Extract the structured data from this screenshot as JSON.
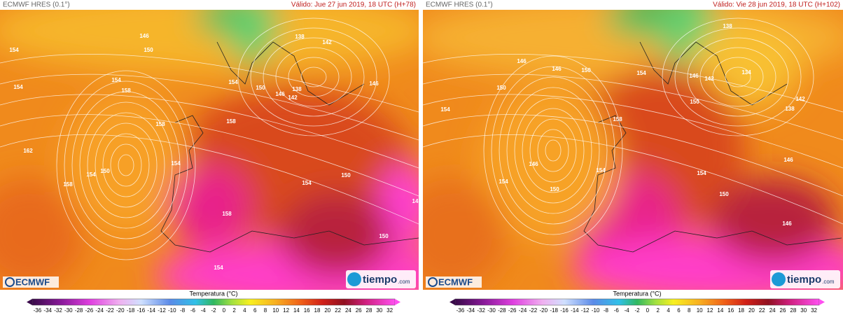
{
  "panels": [
    {
      "model": "ECMWF HRES (0.1°)",
      "valid": "Válido: Jue 27 jun 2019, 18 UTC (H+78)",
      "contour_labels": [
        "154",
        "146",
        "150",
        "154",
        "158",
        "154",
        "162",
        "154",
        "150",
        "158",
        "158",
        "154",
        "158",
        "154",
        "150",
        "146",
        "142",
        "138",
        "138",
        "142",
        "146",
        "154",
        "150",
        "158",
        "154",
        "150",
        "14"
      ]
    },
    {
      "model": "ECMWF HRES (0.1°)",
      "valid": "Válido: Vie 28 jun 2019, 18 UTC (H+102)",
      "contour_labels": [
        "150",
        "146",
        "146",
        "150",
        "154",
        "154",
        "146",
        "150",
        "154",
        "154",
        "158",
        "154",
        "150",
        "146",
        "142",
        "134",
        "138",
        "150",
        "138",
        "142",
        "146",
        "146"
      ]
    }
  ],
  "colorbar": {
    "title": "Temperatura (°C)",
    "ticks": [
      -36,
      -34,
      -32,
      -30,
      -28,
      -26,
      -24,
      -22,
      -20,
      -18,
      -16,
      -14,
      -12,
      -10,
      -8,
      -6,
      -4,
      -2,
      0,
      2,
      4,
      6,
      8,
      10,
      12,
      14,
      16,
      18,
      20,
      22,
      24,
      26,
      28,
      30,
      32
    ]
  },
  "logos": {
    "ecmwf": "ECMWF",
    "tiempo": "tiempo",
    "tiempo_suffix": ".com"
  }
}
